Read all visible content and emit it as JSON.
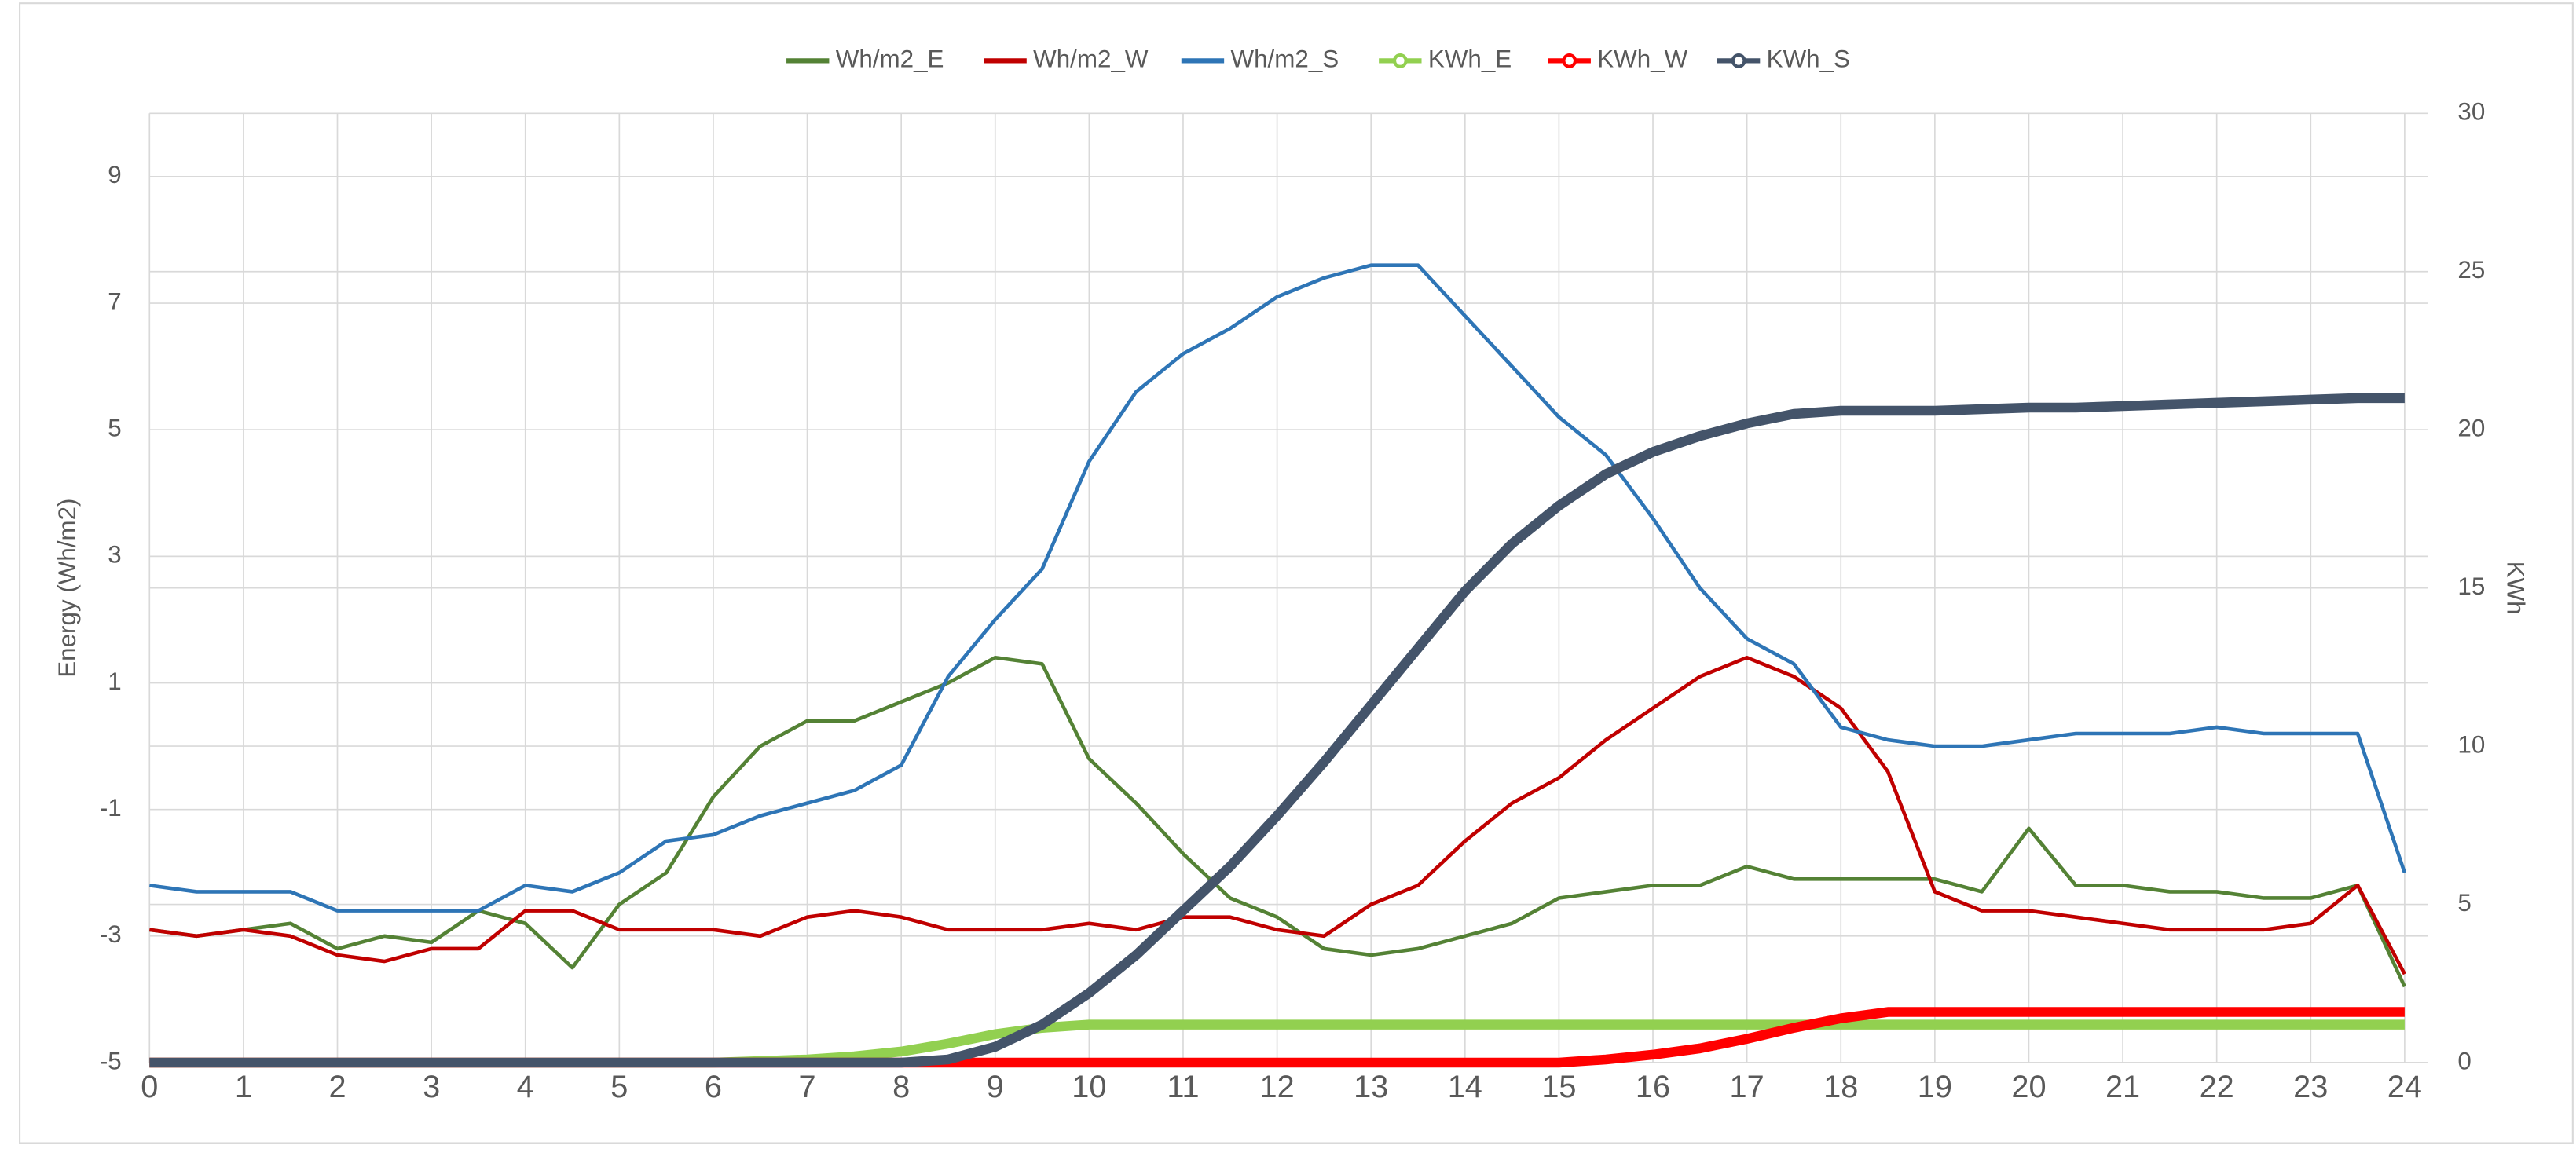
{
  "chart_data": {
    "type": "line",
    "y_label": "Energy (Wh/m2)",
    "y2_label": "KWh",
    "xlim": [
      0,
      24.25
    ],
    "xticks": [
      0,
      1,
      2,
      3,
      4,
      5,
      6,
      7,
      8,
      9,
      10,
      11,
      12,
      13,
      14,
      15,
      16,
      17,
      18,
      19,
      20,
      21,
      22,
      23,
      24
    ],
    "ylim": [
      -5,
      10
    ],
    "yticks": [
      -5,
      -3,
      -1,
      1,
      3,
      5,
      7,
      9
    ],
    "y2lim": [
      0,
      30
    ],
    "y2ticks": [
      0,
      5,
      10,
      15,
      20,
      25,
      30
    ],
    "grid": true,
    "legend": "top",
    "x": [
      0,
      0.5,
      1,
      1.5,
      2,
      2.5,
      3,
      3.5,
      4,
      4.5,
      5,
      5.5,
      6,
      6.5,
      7,
      7.5,
      8,
      8.5,
      9,
      9.5,
      10,
      10.5,
      11,
      11.5,
      12,
      12.5,
      13,
      13.5,
      14,
      14.5,
      15,
      15.5,
      16,
      16.5,
      17,
      17.5,
      18,
      18.5,
      19,
      19.5,
      20,
      20.5,
      21,
      21.5,
      22,
      22.5,
      23,
      23.5,
      24
    ],
    "series": [
      {
        "name": "Wh/m2_E",
        "color": "#548235",
        "values": [
          -2.9,
          -3.0,
          -2.9,
          -2.8,
          -3.2,
          -3.0,
          -3.1,
          -2.6,
          -2.8,
          -3.5,
          -2.5,
          -2.0,
          -0.8,
          0.0,
          0.4,
          0.4,
          0.7,
          1.0,
          1.4,
          1.3,
          -0.2,
          -0.9,
          -1.7,
          -2.4,
          -2.7,
          -3.2,
          -3.3,
          -3.2,
          -3.0,
          -2.8,
          -2.4,
          -2.3,
          -2.2,
          -2.2,
          -1.9,
          -2.1,
          -2.1,
          -2.1,
          -2.1,
          -2.3,
          -1.3,
          -2.2,
          -2.2,
          -2.3,
          -2.3,
          -2.4,
          -2.4,
          -2.2,
          -3.8
        ]
      },
      {
        "name": "Wh/m2_W",
        "color": "#c00000",
        "values": [
          -2.9,
          -3.0,
          -2.9,
          -3.0,
          -3.3,
          -3.4,
          -3.2,
          -3.2,
          -2.6,
          -2.6,
          -2.9,
          -2.9,
          -2.9,
          -3.0,
          -2.7,
          -2.6,
          -2.7,
          -2.9,
          -2.9,
          -2.9,
          -2.8,
          -2.9,
          -2.7,
          -2.7,
          -2.9,
          -3.0,
          -2.5,
          -2.2,
          -1.5,
          -0.9,
          -0.5,
          0.1,
          0.6,
          1.1,
          1.4,
          1.1,
          0.6,
          -0.4,
          -2.3,
          -2.6,
          -2.6,
          -2.7,
          -2.8,
          -2.9,
          -2.9,
          -2.9,
          -2.8,
          -2.2,
          -3.6
        ]
      },
      {
        "name": "Wh/m2_S",
        "color": "#2e75b6",
        "values": [
          -2.2,
          -2.3,
          -2.3,
          -2.3,
          -2.6,
          -2.6,
          -2.6,
          -2.6,
          -2.2,
          -2.3,
          -2.0,
          -1.5,
          -1.4,
          -1.1,
          -0.9,
          -0.7,
          -0.3,
          1.1,
          2.0,
          2.8,
          4.5,
          5.6,
          6.2,
          6.6,
          7.1,
          7.4,
          7.6,
          7.6,
          6.8,
          6.0,
          5.2,
          4.6,
          3.6,
          2.5,
          1.7,
          1.3,
          0.3,
          0.1,
          0.0,
          0.0,
          0.1,
          0.2,
          0.2,
          0.2,
          0.3,
          0.2,
          0.2,
          0.2,
          -2.0
        ]
      },
      {
        "name": "KWh_E",
        "color": "#92d050",
        "axis": "y2",
        "values": [
          0,
          0,
          0,
          0,
          0,
          0,
          0,
          0,
          0,
          0,
          0,
          0,
          0,
          0.05,
          0.1,
          0.2,
          0.35,
          0.6,
          0.9,
          1.1,
          1.2,
          1.2,
          1.2,
          1.2,
          1.2,
          1.2,
          1.2,
          1.2,
          1.2,
          1.2,
          1.2,
          1.2,
          1.2,
          1.2,
          1.2,
          1.2,
          1.2,
          1.2,
          1.2,
          1.2,
          1.2,
          1.2,
          1.2,
          1.2,
          1.2,
          1.2,
          1.2,
          1.2,
          1.2
        ]
      },
      {
        "name": "KWh_W",
        "color": "#ff0000",
        "axis": "y2",
        "values": [
          0,
          0,
          0,
          0,
          0,
          0,
          0,
          0,
          0,
          0,
          0,
          0,
          0,
          0,
          0,
          0,
          0,
          0,
          0,
          0,
          0,
          0,
          0,
          0,
          0,
          0,
          0,
          0,
          0,
          0,
          0,
          0.1,
          0.25,
          0.45,
          0.75,
          1.1,
          1.4,
          1.6,
          1.6,
          1.6,
          1.6,
          1.6,
          1.6,
          1.6,
          1.6,
          1.6,
          1.6,
          1.6,
          1.6
        ]
      },
      {
        "name": "KWh_S",
        "color": "#44546a",
        "axis": "y2",
        "values": [
          0,
          0,
          0,
          0,
          0,
          0,
          0,
          0,
          0,
          0,
          0,
          0,
          0,
          0,
          0,
          0,
          0,
          0.1,
          0.5,
          1.2,
          2.2,
          3.4,
          4.8,
          6.2,
          7.8,
          9.5,
          11.3,
          13.1,
          14.9,
          16.4,
          17.6,
          18.6,
          19.3,
          19.8,
          20.2,
          20.5,
          20.6,
          20.6,
          20.6,
          20.65,
          20.7,
          20.7,
          20.75,
          20.8,
          20.85,
          20.9,
          20.95,
          21.0,
          21.0
        ]
      }
    ]
  }
}
